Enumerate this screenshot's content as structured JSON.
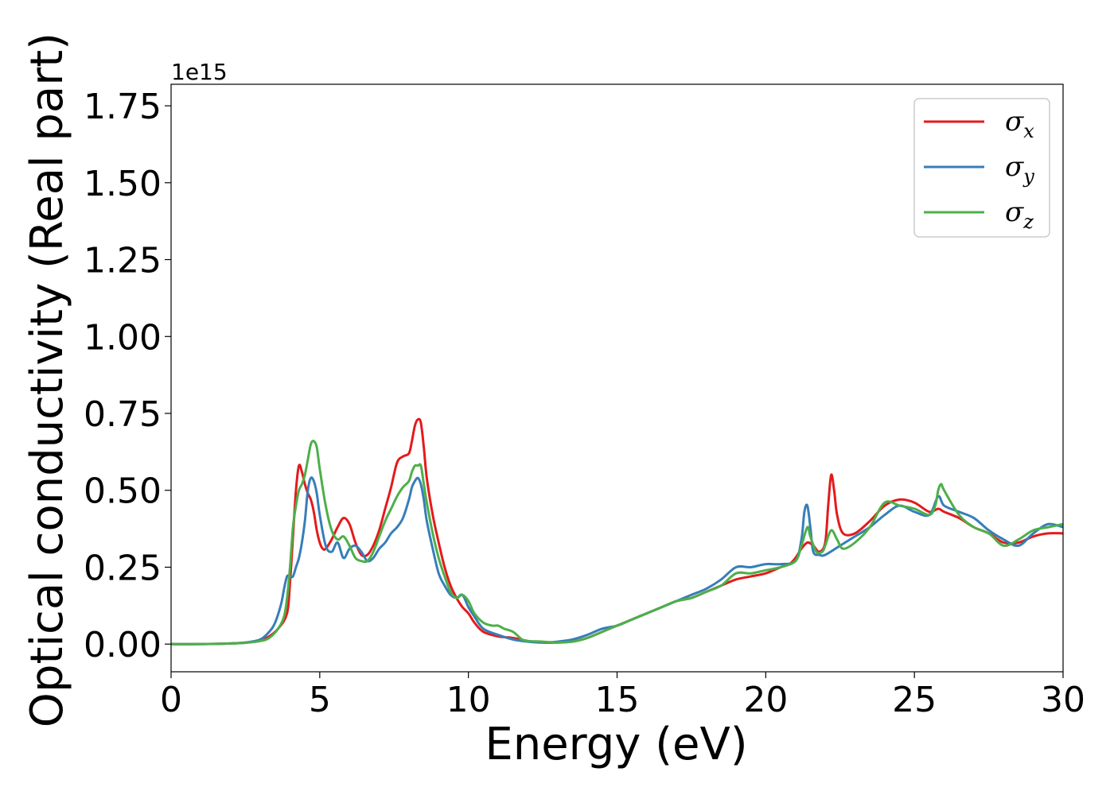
{
  "chart_data": {
    "type": "line",
    "xlabel": "Energy (eV)",
    "ylabel": "Optical conductivity (Real part)",
    "y_offset_label": "1e15",
    "y_multiplier": 1000000000000000.0,
    "xlim": [
      0,
      30
    ],
    "ylim": [
      -0.09,
      1.82
    ],
    "x_ticks": [
      0,
      5,
      10,
      15,
      20,
      25,
      30
    ],
    "x_tick_labels": [
      "0",
      "5",
      "10",
      "15",
      "20",
      "25",
      "30"
    ],
    "y_ticks": [
      0.0,
      0.25,
      0.5,
      0.75,
      1.0,
      1.25,
      1.5,
      1.75
    ],
    "y_tick_labels": [
      "0.00",
      "0.25",
      "0.50",
      "0.75",
      "1.00",
      "1.25",
      "1.50",
      "1.75"
    ],
    "grid": false,
    "legend_position": "top-right",
    "series": [
      {
        "name": "σx",
        "symbol": "σ",
        "subscript": "x",
        "color": "#e41a1c",
        "x": [
          0,
          1,
          2,
          2.5,
          3,
          3.3,
          3.6,
          3.9,
          4.0,
          4.1,
          4.2,
          4.3,
          4.4,
          4.5,
          4.6,
          4.7,
          4.8,
          4.9,
          5.0,
          5.1,
          5.2,
          5.4,
          5.6,
          5.8,
          6.0,
          6.2,
          6.4,
          6.6,
          6.8,
          7.0,
          7.2,
          7.4,
          7.6,
          7.8,
          8.0,
          8.1,
          8.2,
          8.3,
          8.4,
          8.5,
          8.6,
          8.8,
          9.0,
          9.2,
          9.4,
          9.6,
          9.8,
          10.0,
          10.2,
          10.5,
          11.0,
          11.5,
          12.0,
          12.5,
          13.0,
          13.5,
          14.0,
          14.5,
          15.0,
          15.5,
          16.0,
          16.5,
          17.0,
          17.5,
          18.0,
          18.5,
          19.0,
          19.5,
          20.0,
          20.5,
          20.8,
          21.0,
          21.2,
          21.4,
          21.6,
          21.8,
          22.0,
          22.1,
          22.2,
          22.3,
          22.4,
          22.6,
          23.0,
          23.5,
          24.0,
          24.5,
          25.0,
          25.5,
          25.8,
          26.0,
          26.5,
          27.0,
          27.5,
          28.0,
          28.5,
          29.0,
          29.5,
          30.0
        ],
        "y": [
          0,
          0,
          0.002,
          0.005,
          0.012,
          0.025,
          0.05,
          0.1,
          0.2,
          0.35,
          0.5,
          0.58,
          0.56,
          0.52,
          0.49,
          0.47,
          0.43,
          0.37,
          0.33,
          0.31,
          0.31,
          0.34,
          0.38,
          0.41,
          0.39,
          0.33,
          0.29,
          0.29,
          0.32,
          0.37,
          0.44,
          0.51,
          0.59,
          0.61,
          0.62,
          0.66,
          0.71,
          0.73,
          0.72,
          0.64,
          0.54,
          0.42,
          0.33,
          0.25,
          0.19,
          0.15,
          0.12,
          0.1,
          0.07,
          0.04,
          0.025,
          0.02,
          0.01,
          0.005,
          0.005,
          0.008,
          0.02,
          0.04,
          0.06,
          0.08,
          0.1,
          0.12,
          0.14,
          0.15,
          0.17,
          0.19,
          0.21,
          0.22,
          0.23,
          0.25,
          0.26,
          0.28,
          0.31,
          0.33,
          0.32,
          0.3,
          0.33,
          0.45,
          0.55,
          0.5,
          0.42,
          0.36,
          0.36,
          0.4,
          0.45,
          0.47,
          0.46,
          0.43,
          0.44,
          0.43,
          0.41,
          0.38,
          0.36,
          0.33,
          0.33,
          0.35,
          0.36,
          0.36
        ]
      },
      {
        "name": "σy",
        "symbol": "σ",
        "subscript": "y",
        "color": "#377eb8",
        "x": [
          0,
          1,
          2,
          2.5,
          3,
          3.3,
          3.5,
          3.7,
          3.8,
          3.9,
          4.0,
          4.1,
          4.2,
          4.3,
          4.4,
          4.5,
          4.6,
          4.7,
          4.8,
          4.9,
          5.0,
          5.2,
          5.4,
          5.6,
          5.8,
          6.0,
          6.2,
          6.4,
          6.6,
          6.8,
          7.0,
          7.2,
          7.4,
          7.6,
          7.8,
          8.0,
          8.1,
          8.2,
          8.3,
          8.4,
          8.5,
          8.6,
          8.8,
          9.0,
          9.2,
          9.4,
          9.6,
          9.8,
          10.0,
          10.2,
          10.5,
          11.0,
          11.5,
          12.0,
          12.5,
          13.0,
          13.5,
          14.0,
          14.5,
          15.0,
          15.5,
          16.0,
          16.5,
          17.0,
          17.5,
          18.0,
          18.5,
          19.0,
          19.5,
          20.0,
          20.5,
          21.0,
          21.2,
          21.3,
          21.4,
          21.5,
          21.6,
          21.8,
          22.0,
          22.5,
          23.0,
          23.5,
          24.0,
          24.5,
          25.0,
          25.5,
          25.8,
          26.0,
          26.5,
          27.0,
          27.5,
          28.0,
          28.5,
          29.0,
          29.5,
          30.0
        ],
        "y": [
          0,
          0,
          0.002,
          0.005,
          0.015,
          0.04,
          0.07,
          0.13,
          0.18,
          0.22,
          0.22,
          0.22,
          0.25,
          0.28,
          0.33,
          0.4,
          0.5,
          0.54,
          0.53,
          0.49,
          0.42,
          0.32,
          0.3,
          0.33,
          0.28,
          0.31,
          0.32,
          0.3,
          0.27,
          0.28,
          0.31,
          0.33,
          0.36,
          0.38,
          0.41,
          0.47,
          0.51,
          0.53,
          0.54,
          0.52,
          0.47,
          0.4,
          0.31,
          0.23,
          0.19,
          0.16,
          0.15,
          0.16,
          0.12,
          0.09,
          0.05,
          0.03,
          0.015,
          0.008,
          0.005,
          0.008,
          0.015,
          0.03,
          0.05,
          0.06,
          0.08,
          0.1,
          0.12,
          0.14,
          0.16,
          0.18,
          0.21,
          0.25,
          0.25,
          0.26,
          0.26,
          0.27,
          0.34,
          0.43,
          0.45,
          0.38,
          0.3,
          0.29,
          0.29,
          0.32,
          0.35,
          0.38,
          0.42,
          0.45,
          0.43,
          0.42,
          0.48,
          0.45,
          0.43,
          0.41,
          0.37,
          0.34,
          0.32,
          0.36,
          0.39,
          0.38
        ]
      },
      {
        "name": "σz",
        "symbol": "σ",
        "subscript": "z",
        "color": "#4daf4a",
        "x": [
          0,
          1,
          2,
          2.5,
          3,
          3.3,
          3.6,
          3.8,
          3.9,
          4.0,
          4.1,
          4.2,
          4.3,
          4.4,
          4.5,
          4.6,
          4.7,
          4.8,
          4.9,
          5.0,
          5.2,
          5.4,
          5.6,
          5.8,
          6.0,
          6.2,
          6.4,
          6.6,
          6.8,
          7.0,
          7.2,
          7.4,
          7.6,
          7.8,
          8.0,
          8.1,
          8.2,
          8.3,
          8.4,
          8.5,
          8.6,
          8.8,
          9.0,
          9.2,
          9.4,
          9.6,
          9.8,
          10.0,
          10.2,
          10.5,
          10.8,
          11.0,
          11.2,
          11.5,
          11.8,
          12.0,
          12.5,
          13.0,
          13.5,
          14.0,
          14.5,
          15.0,
          15.5,
          16.0,
          16.5,
          17.0,
          17.5,
          18.0,
          18.5,
          19.0,
          19.5,
          20.0,
          20.5,
          21.0,
          21.2,
          21.4,
          21.5,
          21.7,
          21.9,
          22.0,
          22.2,
          22.4,
          22.6,
          23.0,
          23.5,
          24.0,
          24.5,
          25.0,
          25.5,
          25.7,
          25.8,
          25.9,
          26.0,
          26.5,
          27.0,
          27.5,
          28.0,
          28.5,
          29.0,
          29.5,
          30.0
        ],
        "y": [
          0,
          0,
          0.002,
          0.004,
          0.01,
          0.02,
          0.05,
          0.09,
          0.15,
          0.25,
          0.38,
          0.45,
          0.5,
          0.52,
          0.55,
          0.6,
          0.65,
          0.66,
          0.64,
          0.57,
          0.45,
          0.37,
          0.34,
          0.35,
          0.32,
          0.28,
          0.27,
          0.27,
          0.3,
          0.35,
          0.4,
          0.44,
          0.48,
          0.51,
          0.53,
          0.56,
          0.58,
          0.58,
          0.58,
          0.52,
          0.46,
          0.36,
          0.28,
          0.22,
          0.17,
          0.15,
          0.16,
          0.14,
          0.1,
          0.07,
          0.06,
          0.06,
          0.05,
          0.04,
          0.015,
          0.01,
          0.008,
          0.005,
          0.008,
          0.02,
          0.04,
          0.06,
          0.08,
          0.1,
          0.12,
          0.14,
          0.15,
          0.17,
          0.19,
          0.23,
          0.23,
          0.24,
          0.25,
          0.27,
          0.32,
          0.38,
          0.35,
          0.3,
          0.3,
          0.32,
          0.37,
          0.34,
          0.31,
          0.33,
          0.38,
          0.46,
          0.45,
          0.44,
          0.42,
          0.45,
          0.5,
          0.52,
          0.5,
          0.42,
          0.38,
          0.36,
          0.32,
          0.34,
          0.37,
          0.38,
          0.39
        ]
      }
    ]
  }
}
